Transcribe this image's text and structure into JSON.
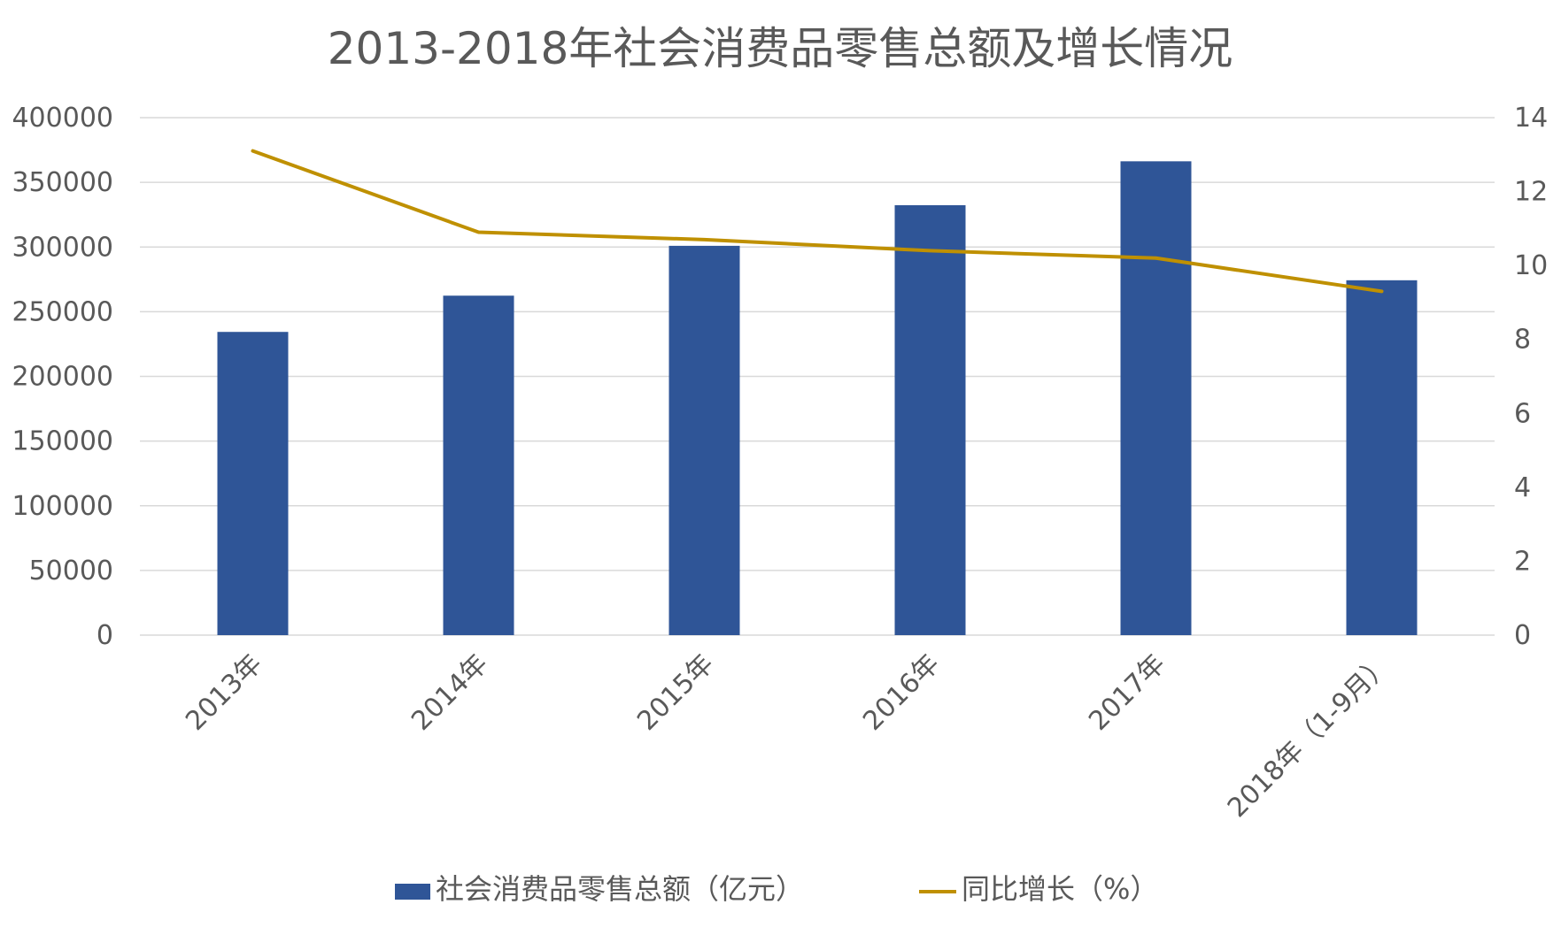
{
  "chart_data": {
    "type": "bar",
    "title": "2013-2018年社会消费品零售总额及增长情况",
    "categories": [
      "2013年",
      "2014年",
      "2015年",
      "2016年",
      "2017年",
      "2018年（1-9月）"
    ],
    "series": [
      {
        "name": "社会消费品零售总额（亿元）",
        "type": "bar",
        "axis": "left",
        "color": "#2f5597",
        "values": [
          234380,
          262394,
          300931,
          332316,
          366262,
          274299
        ]
      },
      {
        "name": "同比增长（%）",
        "type": "line",
        "axis": "right",
        "color": "#bf9000",
        "values": [
          13.1,
          10.9,
          10.7,
          10.4,
          10.2,
          9.3
        ]
      }
    ],
    "y_left": {
      "min": 0,
      "max": 400000,
      "ticks": [
        "0",
        "50000",
        "100000",
        "150000",
        "200000",
        "250000",
        "300000",
        "350000",
        "400000"
      ]
    },
    "y_right": {
      "min": 0,
      "max": 14,
      "ticks": [
        "0",
        "2",
        "4",
        "6",
        "8",
        "10",
        "12",
        "14"
      ]
    },
    "grid": true,
    "legend_position": "bottom"
  }
}
